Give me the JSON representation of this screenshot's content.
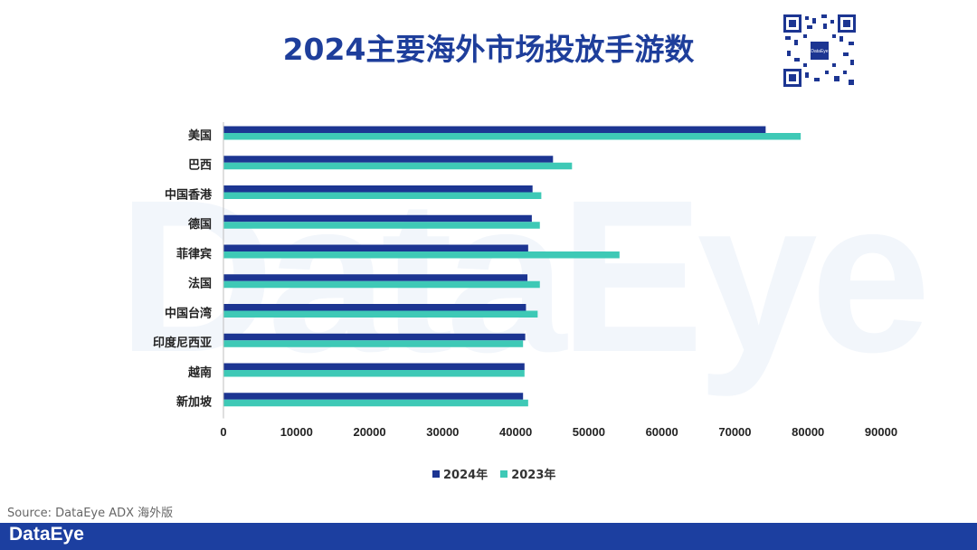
{
  "watermark": "DataEye",
  "title": "2024主要海外市场投放手游数",
  "qr_logo": "DataEye",
  "source": "Source: DataEye ADX 海外版",
  "footer_logo": "DataEye",
  "colors": {
    "series_2024": "#1c3592",
    "series_2023": "#3ec9b6",
    "footer": "#1c3fa0",
    "title": "#1e3e9b"
  },
  "chart_data": {
    "type": "bar",
    "orientation": "horizontal",
    "title": "2024主要海外市场投放手游数",
    "categories": [
      "美国",
      "巴西",
      "中国香港",
      "德国",
      "菲律宾",
      "法国",
      "中国台湾",
      "印度尼西亚",
      "越南",
      "新加坡"
    ],
    "series": [
      {
        "name": "2024年",
        "values": [
          74200,
          45100,
          42300,
          42200,
          41700,
          41600,
          41400,
          41300,
          41200,
          41000
        ]
      },
      {
        "name": "2023年",
        "values": [
          79000,
          47700,
          43500,
          43300,
          54200,
          43300,
          43000,
          41000,
          41200,
          41700
        ]
      }
    ],
    "xlim": [
      0,
      90000
    ],
    "xticks": [
      "0",
      "10000",
      "20000",
      "30000",
      "40000",
      "50000",
      "60000",
      "70000",
      "80000",
      "90000"
    ],
    "grid": false,
    "legend_position": "bottom"
  }
}
